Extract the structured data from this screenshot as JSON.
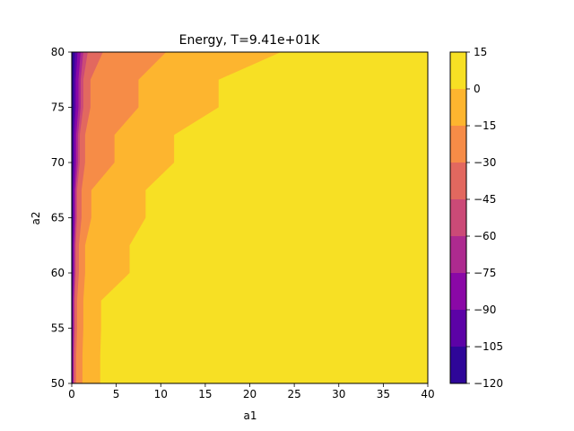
{
  "chart_data": {
    "type": "contour",
    "title": "Energy, T=9.41e+01K",
    "xlabel": "a1",
    "ylabel": "a2",
    "xlim": [
      0,
      40
    ],
    "ylim": [
      50,
      80
    ],
    "xticks": [
      0,
      5,
      10,
      15,
      20,
      25,
      30,
      35,
      40
    ],
    "yticks": [
      50,
      55,
      60,
      65,
      70,
      75,
      80
    ],
    "colorbar": {
      "levels": [
        -120,
        -105,
        -90,
        -75,
        -60,
        -45,
        -30,
        -15,
        0,
        15
      ],
      "ticks": [
        15,
        0,
        -15,
        -30,
        -45,
        -60,
        -75,
        -90,
        -105,
        -120
      ],
      "colors": [
        "#2b0894",
        "#5c02a3",
        "#8b09a5",
        "#ae2890",
        "#cc4778",
        "#e56b5d",
        "#f48c48",
        "#fdb32f",
        "#fdb32f",
        "#f6e024"
      ],
      "band_colors": [
        "#2e0698",
        "#5c02a6",
        "#8a08a6",
        "#ad2a8f",
        "#cb4a77",
        "#e2685f",
        "#f68c47",
        "#fdb52f",
        "#f7e024"
      ]
    },
    "contour_boundaries": {
      "description_levels": "a1 value (data units) of each contour boundary at given a2 values",
      "a2": [
        50,
        55,
        60,
        65,
        70,
        75,
        80
      ],
      "boundary_0": [
        3.2,
        3.3,
        6.5,
        8.3,
        11.5,
        16.5,
        23.5
      ],
      "boundary_m15": [
        1.2,
        1.3,
        1.5,
        2.2,
        4.8,
        7.5,
        10.6
      ],
      "boundary_m30": [
        0.5,
        0.6,
        0.8,
        1.1,
        1.5,
        2.1,
        3.5
      ],
      "boundary_m45": [
        0.3,
        0.35,
        0.45,
        0.6,
        0.9,
        1.3,
        1.8
      ],
      "boundary_m60": [
        0.2,
        0.25,
        0.35,
        0.45,
        0.7,
        1.0,
        1.3
      ],
      "boundary_m75": [
        0.15,
        0.18,
        0.25,
        0.35,
        0.5,
        0.75,
        1.0
      ],
      "boundary_m90": [
        0.08,
        0.1,
        0.15,
        0.2,
        0.3,
        0.45,
        0.65
      ],
      "boundary_m105": [
        0.03,
        0.04,
        0.06,
        0.1,
        0.15,
        0.25,
        0.35
      ]
    }
  }
}
